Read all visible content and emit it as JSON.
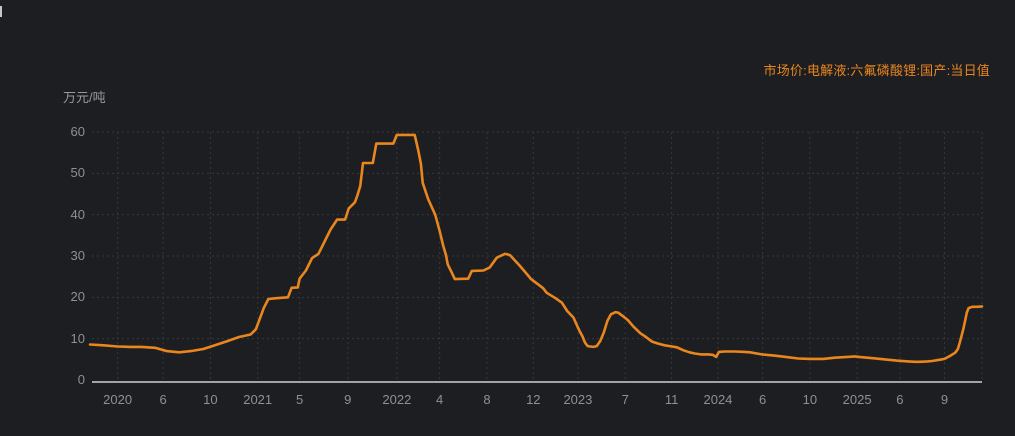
{
  "page": {
    "background": "#1d1e21"
  },
  "legend": {
    "label": "市场价:电解液:六氟磷酸锂:国产:当日值",
    "color": "#e9861e",
    "position": "top-right"
  },
  "axis": {
    "label_color": "#8e9095",
    "axis_line_color": "#9fa4ab",
    "grid_color": "#37383b",
    "y_title_color": "#97989d"
  },
  "chart_data": {
    "type": "line",
    "title": "市场价:电解液:六氟磷酸锂:国产:当日值",
    "ylabel": "万元/吨",
    "xlabel": "",
    "ylim": [
      0,
      60
    ],
    "yticks": [
      0,
      10,
      20,
      30,
      40,
      50,
      60
    ],
    "grid": true,
    "grid_style": "dotted",
    "legend_position": "top-right",
    "line_color": "#e9861e",
    "x_axis_labels": [
      {
        "label": "2020",
        "pos": 0.031
      },
      {
        "label": "6",
        "pos": 0.082
      },
      {
        "label": "10",
        "pos": 0.135
      },
      {
        "label": "2021",
        "pos": 0.188
      },
      {
        "label": "5",
        "pos": 0.235
      },
      {
        "label": "9",
        "pos": 0.289
      },
      {
        "label": "2022",
        "pos": 0.344
      },
      {
        "label": "4",
        "pos": 0.392
      },
      {
        "label": "8",
        "pos": 0.445
      },
      {
        "label": "12",
        "pos": 0.497
      },
      {
        "label": "2023",
        "pos": 0.547
      },
      {
        "label": "7",
        "pos": 0.6
      },
      {
        "label": "11",
        "pos": 0.652
      },
      {
        "label": "2024",
        "pos": 0.704
      },
      {
        "label": "6",
        "pos": 0.754
      },
      {
        "label": "10",
        "pos": 0.807
      },
      {
        "label": "2025",
        "pos": 0.86
      },
      {
        "label": "6",
        "pos": 0.908
      },
      {
        "label": "9",
        "pos": 0.958
      }
    ],
    "extra_vertical_gridlines": [
      1.0
    ],
    "series": [
      {
        "name": "市场价:电解液:六氟磷酸锂:国产:当日值",
        "unit": "万元/吨",
        "points": [
          [
            0.0,
            8.6
          ],
          [
            0.015,
            8.4
          ],
          [
            0.031,
            8.1
          ],
          [
            0.045,
            8.0
          ],
          [
            0.058,
            8.0
          ],
          [
            0.073,
            7.8
          ],
          [
            0.086,
            7.0
          ],
          [
            0.1,
            6.7
          ],
          [
            0.113,
            7.0
          ],
          [
            0.127,
            7.5
          ],
          [
            0.14,
            8.4
          ],
          [
            0.154,
            9.4
          ],
          [
            0.167,
            10.4
          ],
          [
            0.18,
            11.0
          ],
          [
            0.186,
            12.3
          ],
          [
            0.195,
            17.5
          ],
          [
            0.2,
            19.6
          ],
          [
            0.209,
            19.8
          ],
          [
            0.222,
            20.0
          ],
          [
            0.226,
            22.3
          ],
          [
            0.233,
            22.4
          ],
          [
            0.235,
            24.5
          ],
          [
            0.242,
            26.5
          ],
          [
            0.249,
            29.5
          ],
          [
            0.256,
            30.5
          ],
          [
            0.263,
            33.5
          ],
          [
            0.27,
            36.5
          ],
          [
            0.277,
            38.8
          ],
          [
            0.286,
            38.8
          ],
          [
            0.29,
            41.5
          ],
          [
            0.297,
            43.0
          ],
          [
            0.3,
            44.8
          ],
          [
            0.303,
            47.0
          ],
          [
            0.306,
            52.5
          ],
          [
            0.317,
            52.5
          ],
          [
            0.321,
            57.2
          ],
          [
            0.34,
            57.2
          ],
          [
            0.344,
            59.3
          ],
          [
            0.364,
            59.3
          ],
          [
            0.368,
            55.5
          ],
          [
            0.371,
            52.3
          ],
          [
            0.373,
            47.7
          ],
          [
            0.379,
            43.8
          ],
          [
            0.387,
            40.0
          ],
          [
            0.392,
            36.0
          ],
          [
            0.396,
            32.5
          ],
          [
            0.399,
            30.3
          ],
          [
            0.401,
            28.0
          ],
          [
            0.406,
            25.8
          ],
          [
            0.409,
            24.4
          ],
          [
            0.424,
            24.5
          ],
          [
            0.428,
            26.4
          ],
          [
            0.441,
            26.5
          ],
          [
            0.448,
            27.2
          ],
          [
            0.456,
            29.6
          ],
          [
            0.46,
            30.0
          ],
          [
            0.465,
            30.5
          ],
          [
            0.468,
            30.4
          ],
          [
            0.471,
            30.2
          ],
          [
            0.482,
            27.6
          ],
          [
            0.493,
            24.8
          ],
          [
            0.494,
            24.5
          ],
          [
            0.505,
            22.7
          ],
          [
            0.508,
            22.2
          ],
          [
            0.512,
            21.1
          ],
          [
            0.521,
            19.9
          ],
          [
            0.529,
            18.7
          ],
          [
            0.535,
            16.7
          ],
          [
            0.542,
            15.1
          ],
          [
            0.547,
            12.7
          ],
          [
            0.549,
            11.8
          ],
          [
            0.552,
            10.6
          ],
          [
            0.555,
            9.0
          ],
          [
            0.558,
            8.2
          ],
          [
            0.564,
            8.0
          ],
          [
            0.568,
            8.2
          ],
          [
            0.572,
            9.4
          ],
          [
            0.576,
            11.5
          ],
          [
            0.58,
            14.3
          ],
          [
            0.584,
            15.9
          ],
          [
            0.589,
            16.4
          ],
          [
            0.592,
            16.3
          ],
          [
            0.599,
            15.2
          ],
          [
            0.603,
            14.5
          ],
          [
            0.609,
            13.0
          ],
          [
            0.617,
            11.3
          ],
          [
            0.622,
            10.6
          ],
          [
            0.63,
            9.3
          ],
          [
            0.637,
            8.8
          ],
          [
            0.644,
            8.4
          ],
          [
            0.65,
            8.2
          ],
          [
            0.658,
            7.9
          ],
          [
            0.665,
            7.2
          ],
          [
            0.672,
            6.7
          ],
          [
            0.678,
            6.4
          ],
          [
            0.685,
            6.2
          ],
          [
            0.693,
            6.2
          ],
          [
            0.698,
            6.1
          ],
          [
            0.702,
            5.6
          ],
          [
            0.705,
            6.8
          ],
          [
            0.712,
            6.9
          ],
          [
            0.723,
            6.9
          ],
          [
            0.734,
            6.8
          ],
          [
            0.74,
            6.7
          ],
          [
            0.753,
            6.2
          ],
          [
            0.767,
            5.9
          ],
          [
            0.78,
            5.6
          ],
          [
            0.794,
            5.2
          ],
          [
            0.807,
            5.1
          ],
          [
            0.822,
            5.1
          ],
          [
            0.835,
            5.4
          ],
          [
            0.849,
            5.6
          ],
          [
            0.858,
            5.7
          ],
          [
            0.862,
            5.6
          ],
          [
            0.876,
            5.3
          ],
          [
            0.89,
            5.0
          ],
          [
            0.904,
            4.7
          ],
          [
            0.917,
            4.5
          ],
          [
            0.925,
            4.4
          ],
          [
            0.93,
            4.4
          ],
          [
            0.939,
            4.5
          ],
          [
            0.944,
            4.6
          ],
          [
            0.953,
            4.9
          ],
          [
            0.958,
            5.1
          ],
          [
            0.964,
            5.8
          ],
          [
            0.97,
            6.6
          ],
          [
            0.973,
            7.5
          ],
          [
            0.975,
            9.0
          ],
          [
            0.979,
            12.3
          ],
          [
            0.981,
            14.3
          ],
          [
            0.983,
            16.3
          ],
          [
            0.985,
            17.4
          ],
          [
            0.989,
            17.7
          ],
          [
            0.995,
            17.7
          ],
          [
            1.0,
            17.8
          ]
        ]
      }
    ]
  }
}
